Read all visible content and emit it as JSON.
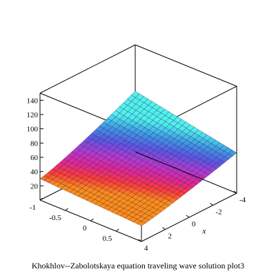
{
  "chart_data": {
    "type": "surface3d",
    "title": "Khokhlov--Zabolotskaya equation traveling wave solution plot3",
    "x_axis": {
      "label": "x",
      "ticks": [
        "-4",
        "-2",
        "0",
        "2",
        "4"
      ],
      "range": [
        -4,
        4
      ]
    },
    "y_axis": {
      "label": "",
      "ticks": [
        "-1",
        "-0.5",
        "0",
        "0.5"
      ],
      "range": [
        -1,
        1
      ]
    },
    "z_axis": {
      "label": "",
      "ticks": [
        "20",
        "40",
        "60",
        "80",
        "100",
        "120",
        "140"
      ],
      "range": [
        0,
        150
      ]
    },
    "surface": {
      "x_range": [
        -4,
        4
      ],
      "y_range": [
        -1,
        1
      ],
      "grid_resolution": 24,
      "z_min": 22,
      "z_max": 85,
      "colormap": [
        "#ff8c1a",
        "#ff3a3a",
        "#e0259a",
        "#b13ad6",
        "#5a55e6",
        "#3d9ae8",
        "#4ff0f0"
      ]
    },
    "box": "closed",
    "grid": false
  }
}
